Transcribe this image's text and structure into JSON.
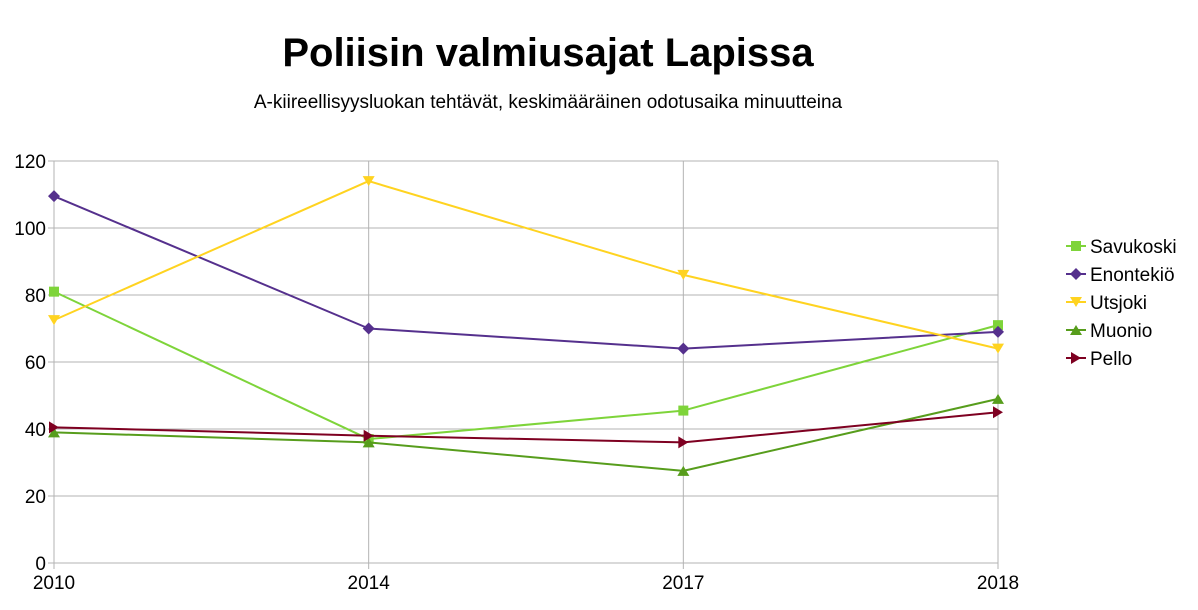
{
  "chart_data": {
    "type": "line",
    "title": "Poliisin valmiusajat Lapissa",
    "subtitle": "A-kiireellisyysluokan tehtävät, keskimääräinen odotusaika minuutteina",
    "categories": [
      "2010",
      "2014",
      "2017",
      "2018"
    ],
    "ylim": [
      0,
      120
    ],
    "yticks": [
      0,
      20,
      40,
      60,
      80,
      100,
      120
    ],
    "grid": true,
    "legend_position": "right",
    "series": [
      {
        "name": "Savukoski",
        "color": "#7ed43a",
        "marker": "square",
        "values": [
          81,
          37,
          45.5,
          71
        ]
      },
      {
        "name": "Enontekiö",
        "color": "#55308d",
        "marker": "diamond",
        "values": [
          109.5,
          70,
          64,
          69
        ]
      },
      {
        "name": "Utsjoki",
        "color": "#ffd320",
        "marker": "triangle-down",
        "values": [
          72.5,
          114,
          86,
          64
        ]
      },
      {
        "name": "Muonio",
        "color": "#579d1c",
        "marker": "triangle-up",
        "values": [
          39,
          36,
          27.5,
          49
        ]
      },
      {
        "name": "Pello",
        "color": "#7e0021",
        "marker": "triangle-right",
        "values": [
          40.5,
          38,
          36,
          45
        ]
      }
    ]
  }
}
